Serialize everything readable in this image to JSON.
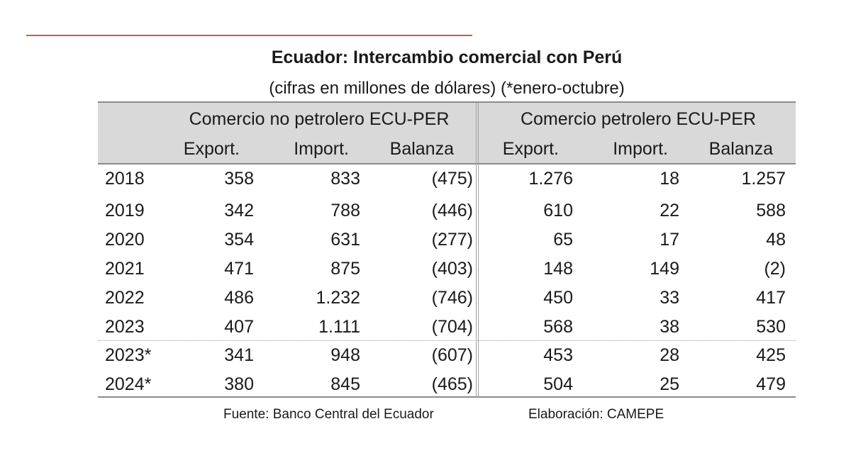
{
  "title": "Ecuador: Intercambio comercial con Perú",
  "subtitle": "(cifras en millones de dólares) (*enero-octubre)",
  "groups": {
    "non_oil": "Comercio no petrolero ECU-PER",
    "oil": "Comercio petrolero ECU-PER"
  },
  "columns": {
    "export": "Export.",
    "import": "Import.",
    "balance": "Balanza"
  },
  "rows": [
    {
      "year": "2018",
      "no_exp": "358",
      "no_imp": "833",
      "no_bal": "(475)",
      "oil_exp": "1.276",
      "oil_imp": "18",
      "oil_bal": "1.257"
    },
    {
      "year": "2019",
      "no_exp": "342",
      "no_imp": "788",
      "no_bal": "(446)",
      "oil_exp": "610",
      "oil_imp": "22",
      "oil_bal": "588"
    },
    {
      "year": "2020",
      "no_exp": "354",
      "no_imp": "631",
      "no_bal": "(277)",
      "oil_exp": "65",
      "oil_imp": "17",
      "oil_bal": "48"
    },
    {
      "year": "2021",
      "no_exp": "471",
      "no_imp": "875",
      "no_bal": "(403)",
      "oil_exp": "148",
      "oil_imp": "149",
      "oil_bal": "(2)"
    },
    {
      "year": "2022",
      "no_exp": "486",
      "no_imp": "1.232",
      "no_bal": "(746)",
      "oil_exp": "450",
      "oil_imp": "33",
      "oil_bal": "417"
    },
    {
      "year": "2023",
      "no_exp": "407",
      "no_imp": "1.111",
      "no_bal": "(704)",
      "oil_exp": "568",
      "oil_imp": "38",
      "oil_bal": "530"
    },
    {
      "year": "2023*",
      "no_exp": "341",
      "no_imp": "948",
      "no_bal": "(607)",
      "oil_exp": "453",
      "oil_imp": "28",
      "oil_bal": "425"
    },
    {
      "year": "2024*",
      "no_exp": "380",
      "no_imp": "845",
      "no_bal": "(465)",
      "oil_exp": "504",
      "oil_imp": "25",
      "oil_bal": "479"
    }
  ],
  "footer": {
    "source": "Fuente: Banco Central del Ecuador",
    "credit": "Elaboración: CAMEPE"
  },
  "colors": {
    "accent_rule": "#d9534f",
    "header_band": "#d9d9d9"
  }
}
